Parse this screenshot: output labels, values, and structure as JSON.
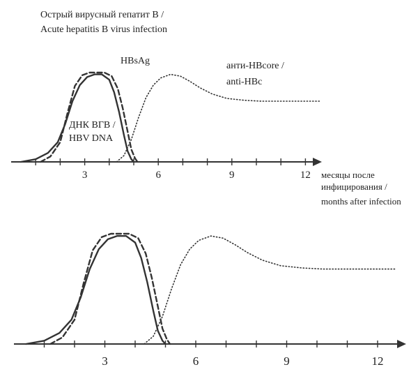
{
  "chart_data": [
    {
      "type": "line",
      "title": "Острый вирусный гепатит B /",
      "subtitle": "Acute hepatitis B virus infection",
      "x_tick_labels": [
        "3",
        "6",
        "9",
        "12"
      ],
      "xlabel_lines": [
        "месяцы после",
        "инфицирования /",
        "months after infection"
      ],
      "xlim": [
        0,
        12.6
      ],
      "ylim": [
        0,
        1
      ],
      "grid": false,
      "series": [
        {
          "name": "HBsAg",
          "style": "dashed",
          "x": [
            1.2,
            1.6,
            2.0,
            2.3,
            2.6,
            2.9,
            3.2,
            3.5,
            3.8,
            4.1,
            4.35,
            4.55,
            4.75,
            4.9,
            5.05,
            5.15
          ],
          "y": [
            0.0,
            0.06,
            0.22,
            0.55,
            0.85,
            0.97,
            1.0,
            1.0,
            1.0,
            0.96,
            0.82,
            0.6,
            0.34,
            0.14,
            0.04,
            0.0
          ]
        },
        {
          "name": "ДНК ВГВ /",
          "name_line2": "HBV DNA",
          "style": "solid",
          "x": [
            0.4,
            1.0,
            1.5,
            1.9,
            2.2,
            2.5,
            2.8,
            3.1,
            3.4,
            3.7,
            4.0,
            4.2,
            4.4,
            4.6,
            4.75,
            4.9,
            5.0
          ],
          "y": [
            0.0,
            0.03,
            0.1,
            0.22,
            0.42,
            0.68,
            0.86,
            0.95,
            0.98,
            0.98,
            0.92,
            0.78,
            0.56,
            0.3,
            0.12,
            0.03,
            0.0
          ]
        },
        {
          "name": "анти-HBcore /",
          "name_line2": "anti-HBc",
          "style": "dotted",
          "x": [
            4.3,
            4.6,
            4.9,
            5.2,
            5.5,
            5.8,
            6.1,
            6.5,
            6.9,
            7.3,
            7.7,
            8.2,
            8.8,
            9.5,
            10.2,
            11.0,
            12.0,
            12.6
          ],
          "y": [
            0.0,
            0.07,
            0.25,
            0.5,
            0.72,
            0.86,
            0.94,
            0.98,
            0.96,
            0.9,
            0.83,
            0.76,
            0.71,
            0.69,
            0.68,
            0.68,
            0.68,
            0.68
          ]
        }
      ]
    },
    {
      "type": "line",
      "x_tick_labels": [
        "3",
        "6",
        "9",
        "12"
      ],
      "xlim": [
        0,
        12.6
      ],
      "ylim": [
        0,
        1
      ],
      "grid": false,
      "series": [
        {
          "style": "dashed",
          "x": [
            1.2,
            1.6,
            2.0,
            2.3,
            2.6,
            2.9,
            3.2,
            3.5,
            3.8,
            4.1,
            4.35,
            4.55,
            4.75,
            4.9,
            5.05,
            5.15
          ],
          "y": [
            0.0,
            0.06,
            0.22,
            0.55,
            0.85,
            0.97,
            1.0,
            1.0,
            1.0,
            0.96,
            0.82,
            0.6,
            0.34,
            0.14,
            0.04,
            0.0
          ]
        },
        {
          "style": "solid",
          "x": [
            0.4,
            1.0,
            1.5,
            1.9,
            2.2,
            2.5,
            2.8,
            3.1,
            3.4,
            3.7,
            4.0,
            4.2,
            4.4,
            4.6,
            4.75,
            4.9,
            5.0
          ],
          "y": [
            0.0,
            0.03,
            0.1,
            0.22,
            0.42,
            0.68,
            0.86,
            0.95,
            0.98,
            0.98,
            0.92,
            0.78,
            0.56,
            0.3,
            0.12,
            0.03,
            0.0
          ]
        },
        {
          "style": "dotted",
          "x": [
            4.3,
            4.6,
            4.9,
            5.2,
            5.5,
            5.8,
            6.1,
            6.5,
            6.9,
            7.3,
            7.7,
            8.2,
            8.8,
            9.5,
            10.2,
            11.0,
            12.0,
            12.6
          ],
          "y": [
            0.0,
            0.07,
            0.25,
            0.5,
            0.72,
            0.86,
            0.94,
            0.98,
            0.96,
            0.9,
            0.83,
            0.76,
            0.71,
            0.69,
            0.68,
            0.68,
            0.68,
            0.68
          ]
        }
      ]
    }
  ]
}
